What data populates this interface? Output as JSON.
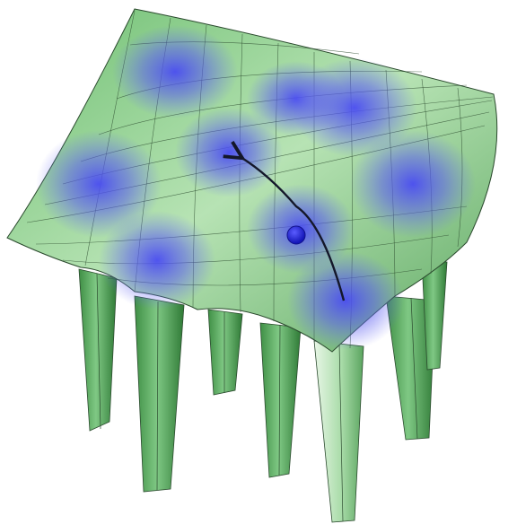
{
  "figure": {
    "subject": "potential-energy-landscape",
    "grid": {
      "rows": 3,
      "cols": 3
    },
    "colors": {
      "background": "#ffffff",
      "surface_light": "#d9f0d6",
      "surface_mid": "#8fcf8f",
      "surface_dark": "#4f9e52",
      "mesh_line": "#2b4a2e",
      "well_glow": "#5a5cf0",
      "particle": "#1f22d6",
      "arrow": "#14172a"
    },
    "icons": {
      "particle": "particle-dot-icon",
      "path": "curved-arrow-icon"
    }
  }
}
